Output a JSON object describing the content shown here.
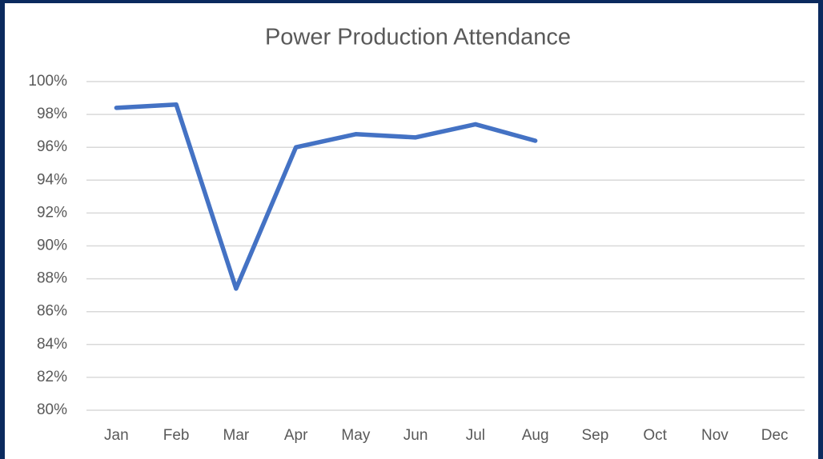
{
  "chart_data": {
    "type": "line",
    "title": "Power Production Attendance",
    "categories": [
      "Jan",
      "Feb",
      "Mar",
      "Apr",
      "May",
      "Jun",
      "Jul",
      "Aug",
      "Sep",
      "Oct",
      "Nov",
      "Dec"
    ],
    "values": [
      98.4,
      98.6,
      87.4,
      96.0,
      96.8,
      96.6,
      97.4,
      96.4,
      null,
      null,
      null,
      null
    ],
    "color": "#4472c4",
    "ylim": [
      80,
      100
    ],
    "yticks": [
      {
        "value": 80,
        "label": "80%"
      },
      {
        "value": 82,
        "label": "82%"
      },
      {
        "value": 84,
        "label": "84%"
      },
      {
        "value": 86,
        "label": "86%"
      },
      {
        "value": 88,
        "label": "88%"
      },
      {
        "value": 90,
        "label": "90%"
      },
      {
        "value": 92,
        "label": "92%"
      },
      {
        "value": 94,
        "label": "94%"
      },
      {
        "value": 96,
        "label": "96%"
      },
      {
        "value": 98,
        "label": "98%"
      },
      {
        "value": 100,
        "label": "100%"
      }
    ],
    "grid": true
  }
}
